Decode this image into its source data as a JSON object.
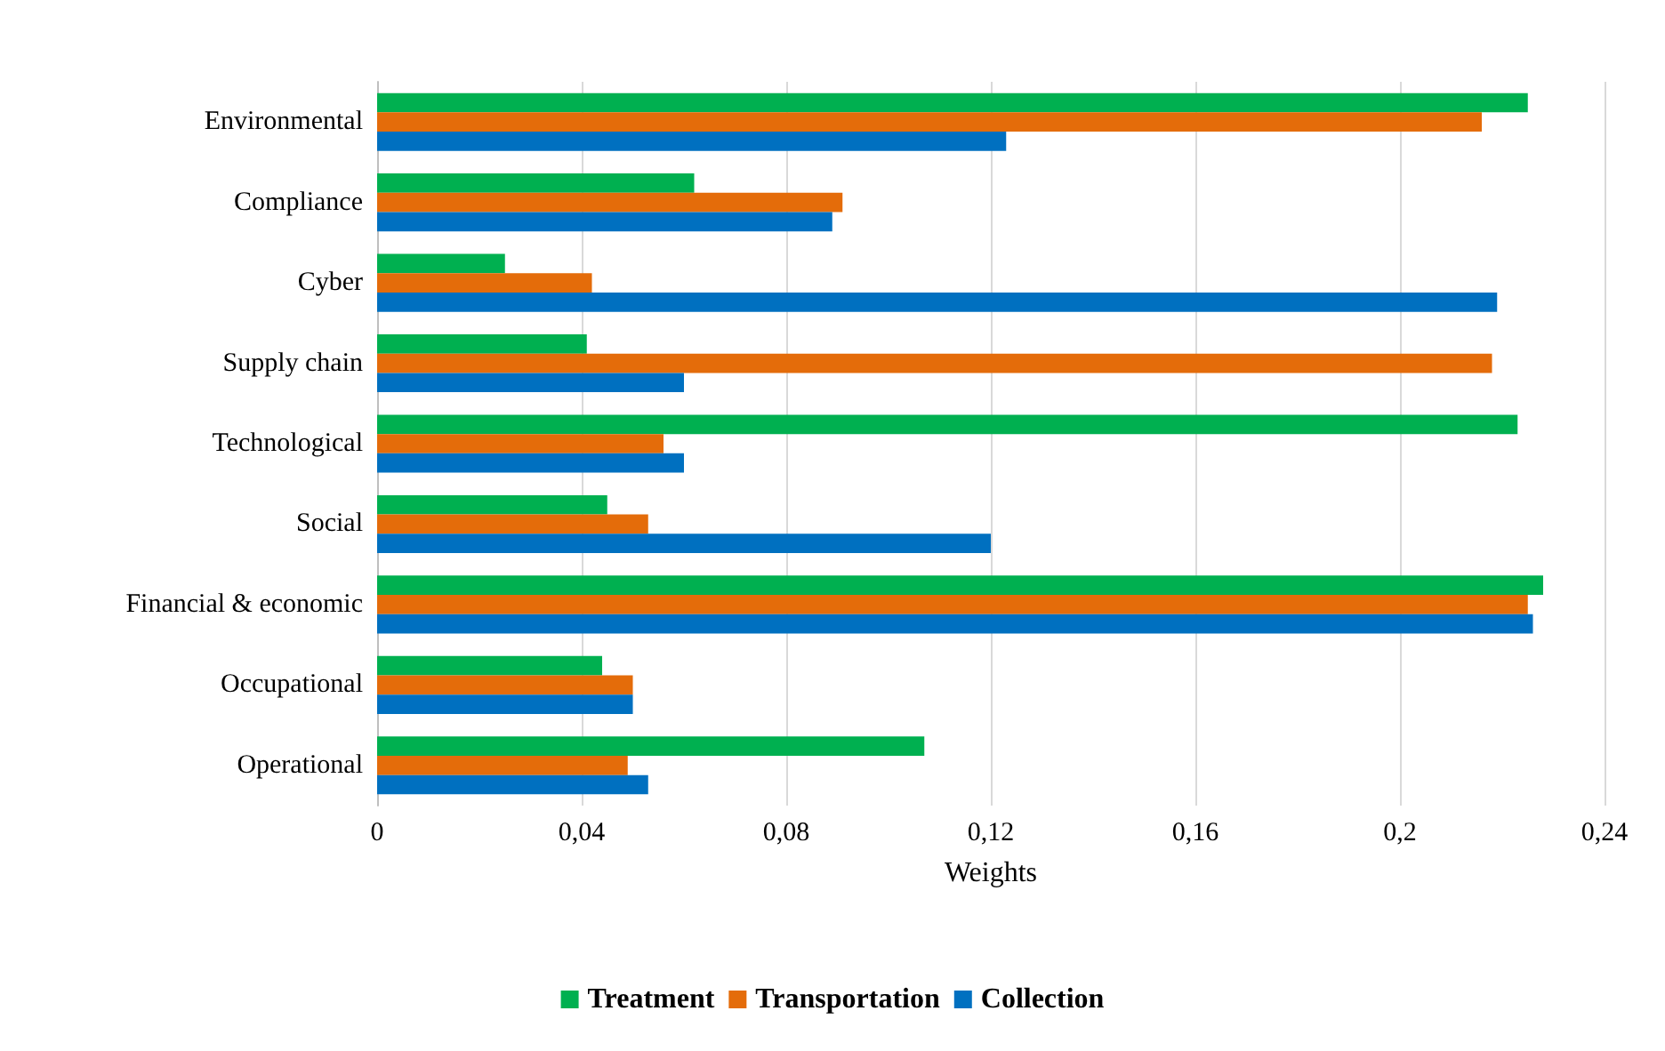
{
  "chart_data": {
    "type": "bar",
    "orientation": "horizontal",
    "xlabel": "Weights",
    "categories": [
      "Environmental",
      "Compliance",
      "Cyber",
      "Supply chain",
      "Technological",
      "Social",
      "Financial & economic",
      "Occupational",
      "Operational"
    ],
    "series": [
      {
        "name": "Treatment",
        "color": "#00b050",
        "values": [
          0.225,
          0.062,
          0.025,
          0.041,
          0.223,
          0.045,
          0.228,
          0.044,
          0.107
        ]
      },
      {
        "name": "Transportation",
        "color": "#e46c0a",
        "values": [
          0.216,
          0.091,
          0.042,
          0.218,
          0.056,
          0.053,
          0.225,
          0.05,
          0.049
        ]
      },
      {
        "name": "Collection",
        "color": "#0070c0",
        "values": [
          0.123,
          0.089,
          0.219,
          0.06,
          0.06,
          0.12,
          0.226,
          0.05,
          0.053
        ]
      }
    ],
    "xlim": [
      0,
      0.24
    ],
    "xticks": [
      0,
      {
        "value": 0.04,
        "label": "0,04"
      },
      {
        "value": 0.08,
        "label": "0,08"
      },
      {
        "value": 0.12,
        "label": "0,12"
      },
      {
        "value": 0.16,
        "label": "0,16"
      },
      {
        "value": 0.2,
        "label": "0,2"
      },
      {
        "value": 0.24,
        "label": "0,24"
      }
    ],
    "grid": "x",
    "legend": "bottom"
  }
}
